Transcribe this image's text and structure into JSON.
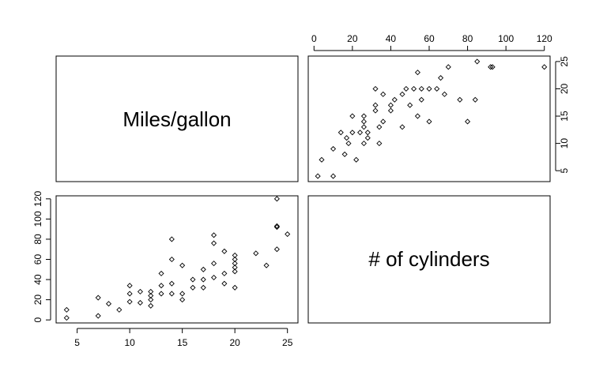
{
  "chart_data": {
    "type": "scatter",
    "title": "",
    "variables": [
      "Miles/gallon",
      "# of cylinders"
    ],
    "diagonal_labels": {
      "top_left": "Miles/gallon",
      "bottom_right": "# of cylinders"
    },
    "axes": {
      "mpg": {
        "range": [
          3,
          26
        ],
        "ticks": [
          5,
          10,
          15,
          20,
          25
        ]
      },
      "cyl": {
        "range": [
          -3,
          123
        ],
        "ticks": [
          0,
          20,
          40,
          60,
          80,
          100,
          120
        ]
      }
    },
    "points": [
      {
        "mpg": 4,
        "cyl": 2
      },
      {
        "mpg": 4,
        "cyl": 10
      },
      {
        "mpg": 7,
        "cyl": 4
      },
      {
        "mpg": 7,
        "cyl": 22
      },
      {
        "mpg": 8,
        "cyl": 16
      },
      {
        "mpg": 9,
        "cyl": 10
      },
      {
        "mpg": 10,
        "cyl": 18
      },
      {
        "mpg": 10,
        "cyl": 26
      },
      {
        "mpg": 10,
        "cyl": 34
      },
      {
        "mpg": 11,
        "cyl": 17
      },
      {
        "mpg": 11,
        "cyl": 28
      },
      {
        "mpg": 12,
        "cyl": 14
      },
      {
        "mpg": 12,
        "cyl": 20
      },
      {
        "mpg": 12,
        "cyl": 24
      },
      {
        "mpg": 12,
        "cyl": 28
      },
      {
        "mpg": 13,
        "cyl": 26
      },
      {
        "mpg": 13,
        "cyl": 34
      },
      {
        "mpg": 13,
        "cyl": 46
      },
      {
        "mpg": 14,
        "cyl": 26
      },
      {
        "mpg": 14,
        "cyl": 36
      },
      {
        "mpg": 14,
        "cyl": 60
      },
      {
        "mpg": 14,
        "cyl": 80
      },
      {
        "mpg": 15,
        "cyl": 20
      },
      {
        "mpg": 15,
        "cyl": 26
      },
      {
        "mpg": 15,
        "cyl": 54
      },
      {
        "mpg": 16,
        "cyl": 32
      },
      {
        "mpg": 16,
        "cyl": 40
      },
      {
        "mpg": 17,
        "cyl": 32
      },
      {
        "mpg": 17,
        "cyl": 40
      },
      {
        "mpg": 17,
        "cyl": 50
      },
      {
        "mpg": 18,
        "cyl": 42
      },
      {
        "mpg": 18,
        "cyl": 56
      },
      {
        "mpg": 18,
        "cyl": 76
      },
      {
        "mpg": 18,
        "cyl": 84
      },
      {
        "mpg": 19,
        "cyl": 36
      },
      {
        "mpg": 19,
        "cyl": 46
      },
      {
        "mpg": 19,
        "cyl": 68
      },
      {
        "mpg": 20,
        "cyl": 32
      },
      {
        "mpg": 20,
        "cyl": 48
      },
      {
        "mpg": 20,
        "cyl": 52
      },
      {
        "mpg": 20,
        "cyl": 56
      },
      {
        "mpg": 20,
        "cyl": 60
      },
      {
        "mpg": 20,
        "cyl": 64
      },
      {
        "mpg": 22,
        "cyl": 66
      },
      {
        "mpg": 23,
        "cyl": 54
      },
      {
        "mpg": 24,
        "cyl": 70
      },
      {
        "mpg": 24,
        "cyl": 92
      },
      {
        "mpg": 24,
        "cyl": 93
      },
      {
        "mpg": 24,
        "cyl": 120
      },
      {
        "mpg": 25,
        "cyl": 85
      }
    ]
  }
}
